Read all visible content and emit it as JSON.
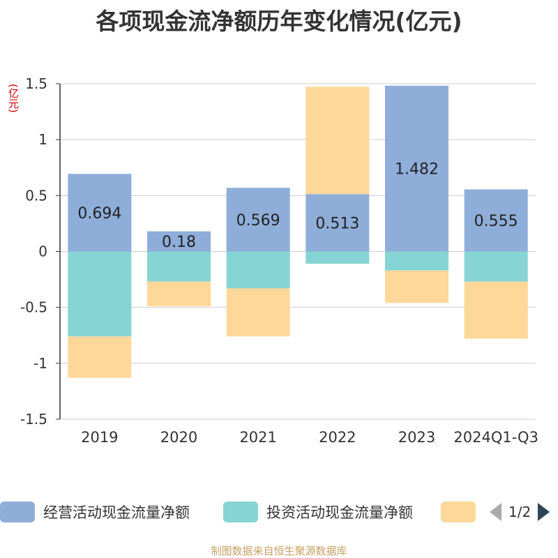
{
  "title": "各项现金流净额历年变化情况(亿元)",
  "unit_label": "(亿元)",
  "source_text": "制图数据来自恒生聚源数据库",
  "legend_pager": "1/2",
  "chart_data": {
    "type": "bar",
    "stacked": true,
    "categories": [
      "2019",
      "2020",
      "2021",
      "2022",
      "2023",
      "2024Q1-Q3"
    ],
    "ylim": [
      -1.5,
      1.5
    ],
    "yticks": [
      1.5,
      1,
      0.5,
      0,
      -0.5,
      -1,
      -1.5
    ],
    "ytick_labels": [
      "1.5",
      "1",
      "0.5",
      "0",
      "-0.5",
      "-1",
      "-1.5"
    ],
    "grid": true,
    "legend_position": "bottom",
    "series": [
      {
        "name": "经营活动现金流量净额",
        "color": "#8eaed9",
        "values": [
          0.694,
          0.18,
          0.569,
          0.513,
          1.482,
          0.555
        ],
        "labels": [
          "0.694",
          "0.18",
          "0.569",
          "0.513",
          "1.482",
          "0.555"
        ]
      },
      {
        "name": "投资活动现金流量净额",
        "color": "#86d4d4",
        "values": [
          -0.76,
          -0.27,
          -0.33,
          -0.11,
          -0.17,
          -0.27
        ]
      },
      {
        "name": "",
        "color": "#fdd899",
        "values": [
          -0.37,
          -0.22,
          -0.43,
          0.96,
          -0.29,
          -0.51
        ]
      }
    ]
  }
}
